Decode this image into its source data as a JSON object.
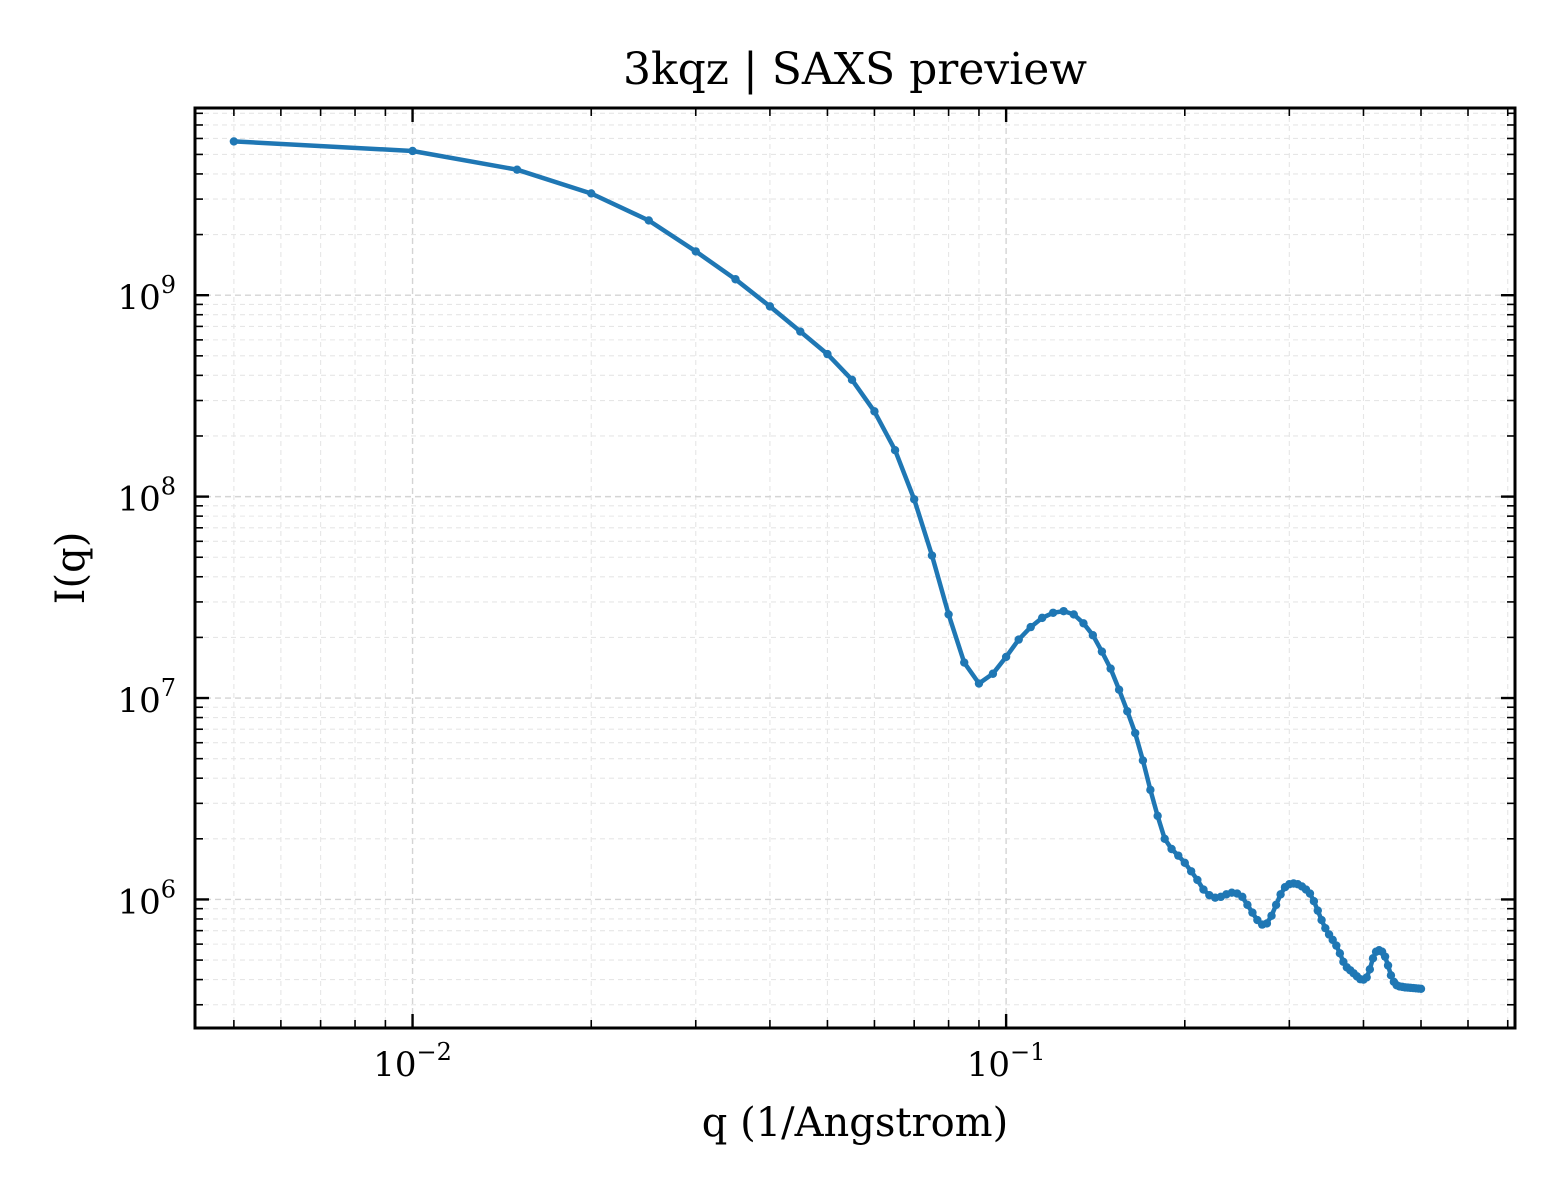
{
  "chart_data": {
    "type": "line",
    "title": "3kqz | SAXS preview",
    "xlabel": "q (1/Angstrom)",
    "ylabel": "I(q)",
    "xscale": "log",
    "yscale": "log",
    "xlim": [
      0.0043,
      0.72
    ],
    "ylim": [
      230000,
      8500000000
    ],
    "grid": true,
    "grid_which": "both",
    "tick_direction": "in",
    "ticks_on_all_sides": true,
    "x_major_ticks": [
      {
        "base": "10",
        "exp": "−2",
        "value": 0.01
      },
      {
        "base": "10",
        "exp": "−1",
        "value": 0.1
      }
    ],
    "y_major_ticks": [
      {
        "base": "10",
        "exp": "6",
        "value": 1000000
      },
      {
        "base": "10",
        "exp": "7",
        "value": 10000000
      },
      {
        "base": "10",
        "exp": "8",
        "value": 100000000
      },
      {
        "base": "10",
        "exp": "9",
        "value": 1000000000
      }
    ],
    "color": "#1f77b4",
    "series": [
      {
        "marker": "circle",
        "x": [
          0.005,
          0.01,
          0.015,
          0.02,
          0.025,
          0.03,
          0.035,
          0.04,
          0.045,
          0.05,
          0.055,
          0.06,
          0.065,
          0.07,
          0.075,
          0.08,
          0.085,
          0.09,
          0.095,
          0.1,
          0.105,
          0.11,
          0.115,
          0.12,
          0.125,
          0.13,
          0.135,
          0.14,
          0.145,
          0.15,
          0.155,
          0.16,
          0.165,
          0.17,
          0.175,
          0.18,
          0.185,
          0.19,
          0.195,
          0.2,
          0.205,
          0.21,
          0.215,
          0.22,
          0.225,
          0.23,
          0.235,
          0.24,
          0.245,
          0.25,
          0.255,
          0.26,
          0.265,
          0.27,
          0.275,
          0.28,
          0.285,
          0.29,
          0.295,
          0.3,
          0.305,
          0.31,
          0.315,
          0.32,
          0.325,
          0.33,
          0.335,
          0.34,
          0.345,
          0.35,
          0.355,
          0.36,
          0.365,
          0.37,
          0.375,
          0.38,
          0.385,
          0.39,
          0.395,
          0.4,
          0.405,
          0.41,
          0.415,
          0.42,
          0.425,
          0.43,
          0.435,
          0.44,
          0.445,
          0.45,
          0.455,
          0.46,
          0.465,
          0.47,
          0.475,
          0.48,
          0.485,
          0.49,
          0.495,
          0.5
        ],
        "y": [
          5800000000.0,
          5200000000.0,
          4200000000.0,
          3200000000.0,
          2350000000.0,
          1650000000.0,
          1200000000.0,
          880000000.0,
          660000000.0,
          510000000.0,
          380000000.0,
          265000000.0,
          170000000.0,
          97000000.0,
          51000000.0,
          26000000.0,
          15000000.0,
          11800000.0,
          13200000.0,
          16000000.0,
          19500000.0,
          22500000.0,
          25000000.0,
          26500000.0,
          27000000.0,
          26000000.0,
          23500000.0,
          20500000.0,
          17000000.0,
          14000000.0,
          11000000.0,
          8600000.0,
          6700000.0,
          4900000.0,
          3500000.0,
          2600000.0,
          2000000.0,
          1780000.0,
          1650000.0,
          1520000.0,
          1380000.0,
          1250000.0,
          1120000.0,
          1050000.0,
          1020000.0,
          1030000.0,
          1060000.0,
          1080000.0,
          1070000.0,
          1030000.0,
          940000.0,
          860000.0,
          790000.0,
          750000.0,
          760000.0,
          830000.0,
          940000.0,
          1060000.0,
          1150000.0,
          1190000.0,
          1200000.0,
          1190000.0,
          1160000.0,
          1120000.0,
          1070000.0,
          980000.0,
          880000.0,
          790000.0,
          720000.0,
          670000.0,
          630000.0,
          590000.0,
          540000.0,
          490000.0,
          460000.0,
          445000.0,
          430000.0,
          415000.0,
          402000.0,
          400000.0,
          410000.0,
          450000.0,
          510000.0,
          550000.0,
          560000.0,
          550000.0,
          520000.0,
          470000.0,
          420000.0,
          390000.0,
          375000.0,
          370000.0,
          368000.0,
          366000.0,
          365000.0,
          364000.0,
          363000.0,
          362000.0,
          361000.0,
          360000.0
        ]
      }
    ]
  }
}
